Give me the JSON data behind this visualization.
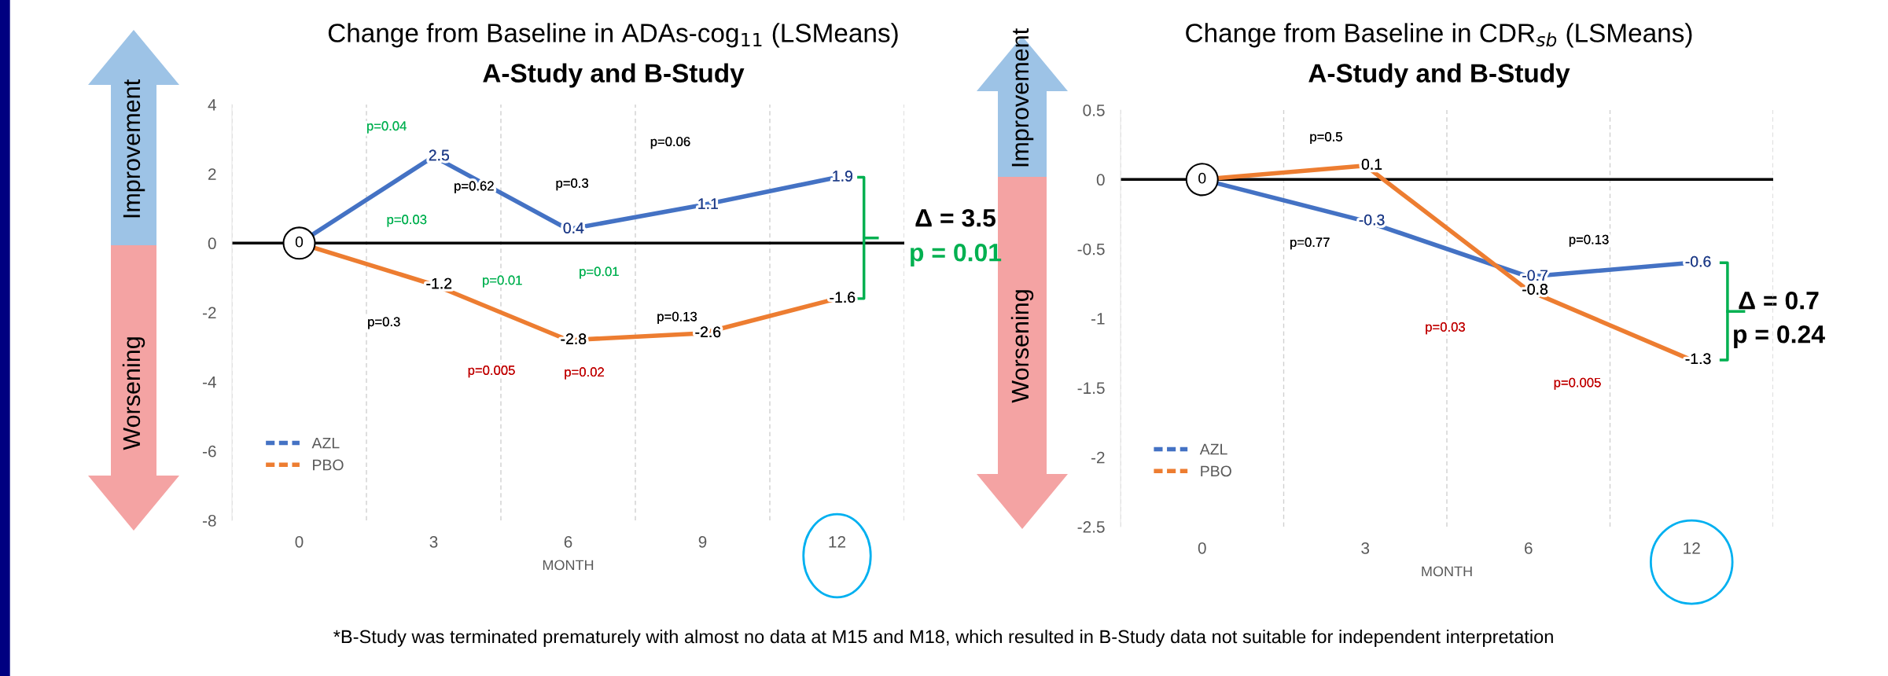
{
  "chart_data": [
    {
      "type": "line",
      "title": "Change from Baseline in ADAs-cog$_{11}$ (LSMeans)",
      "subtitle": "A-Study and B-Study",
      "xlabel": "MONTH",
      "categories": [
        "0",
        "3",
        "6",
        "9",
        "12"
      ],
      "series": [
        {
          "name": "AZL",
          "color": "#4472c4",
          "values": [
            0,
            2.5,
            0.4,
            1.1,
            1.9
          ],
          "value_labels": [
            "0",
            "2.5",
            "0.4",
            "1.1",
            "1.9"
          ]
        },
        {
          "name": "PBO",
          "color": "#ed7d31",
          "values": [
            0,
            -1.2,
            -2.8,
            -2.6,
            -1.6
          ],
          "value_labels": [
            null,
            "-1.2",
            "-2.8",
            "-2.6",
            "-1.6"
          ]
        }
      ],
      "ylim": [
        -8,
        4
      ],
      "yticks": [
        -8,
        -6,
        -4,
        -2,
        0,
        2,
        4
      ],
      "ref_lines": [
        {
          "axis": "y",
          "value": 0,
          "label": null,
          "color": "#000000"
        }
      ],
      "legend": "bottom left",
      "grid": "x",
      "marker": "none",
      "line_style": "solid",
      "annotations": [
        "p=0.04",
        "p=0.03",
        "p=0.62",
        "p=0.3",
        "p=0.06",
        "p=0.3",
        "p=0.01",
        "p=0.01",
        "p=0.13",
        "p=0.005",
        "p=0.02",
        "Δ = 3.5",
        "p = 0.01",
        "Improvement",
        "Worsening",
        "*B-Study was terminated prematurely with almost no data at M15 and M18, which resulted in B-Study data not suitable for independent interpretation"
      ]
    },
    {
      "type": "line",
      "title": "Change from Baseline in CDR$_{sb}$ (LSMeans)",
      "subtitle": "A-Study and B-Study",
      "xlabel": "MONTH",
      "categories": [
        "0",
        "3",
        "6",
        "12"
      ],
      "series": [
        {
          "name": "AZL",
          "color": "#4472c4",
          "values": [
            0,
            -0.3,
            -0.7,
            -0.6
          ],
          "value_labels": [
            "0",
            "-0.3",
            "-0.7",
            "-0.6"
          ]
        },
        {
          "name": "PBO",
          "color": "#ed7d31",
          "values": [
            0,
            0.1,
            -0.8,
            -1.3
          ],
          "value_labels": [
            null,
            "0.1",
            "-0.8",
            "-1.3"
          ]
        }
      ],
      "ylim": [
        -2.5,
        0.5
      ],
      "yticks": [
        -2.5,
        -2,
        -1.5,
        -1,
        -0.5,
        0,
        0.5
      ],
      "ref_lines": [
        {
          "axis": "y",
          "value": 0,
          "label": null,
          "color": "#000000"
        }
      ],
      "legend": "bottom left",
      "grid": "x",
      "marker": "none",
      "line_style": "solid",
      "annotations": [
        "p=0.5",
        "p=0.77",
        "p=0.13",
        "p=0.03",
        "p=0.005",
        "Δ = 0.7",
        "p = 0.24",
        "Improvement",
        "Worsening"
      ]
    }
  ]
}
